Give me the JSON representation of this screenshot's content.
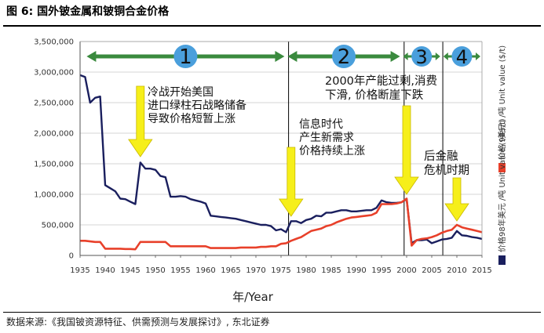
{
  "figure_title": "图 6:   国外铍金属和铍铜合金价格",
  "source_note": "数据来源:《我国铍资源特征、供需预测与发展探讨》, 东北证券",
  "chart_data": {
    "type": "line",
    "xlabel": "年/Year",
    "xlim": [
      1935,
      2015
    ],
    "ylim": [
      0,
      3500000
    ],
    "x_ticks": [
      "1935",
      "1940",
      "1945",
      "1950",
      "1955",
      "1960",
      "1965",
      "1970",
      "1975",
      "1980",
      "1985",
      "1990",
      "1995",
      "2000",
      "2005",
      "2010",
      "2015"
    ],
    "y_ticks": [
      "0",
      "500,000",
      "1,000,000",
      "1,500,000",
      "2,000,000",
      "2,500,000",
      "3,000,000",
      "3,500,000"
    ],
    "legend": [
      {
        "label": "价格 (美元) /吨   Unit value ($/t)",
        "color": "#e8402a"
      },
      {
        "label": "价格98年美元 /吨   Unit value (98$/t)",
        "color": "#1a1f5e"
      }
    ],
    "series": [
      {
        "name": "价格98年美元 /吨   Unit value (98$/t)",
        "color": "#1a1f5e",
        "points": [
          [
            1935,
            2950000
          ],
          [
            1936,
            2920000
          ],
          [
            1937,
            2500000
          ],
          [
            1938,
            2580000
          ],
          [
            1939,
            2600000
          ],
          [
            1940,
            1150000
          ],
          [
            1941,
            1100000
          ],
          [
            1942,
            1050000
          ],
          [
            1943,
            930000
          ],
          [
            1944,
            920000
          ],
          [
            1945,
            880000
          ],
          [
            1946,
            840000
          ],
          [
            1947,
            1520000
          ],
          [
            1948,
            1420000
          ],
          [
            1949,
            1420000
          ],
          [
            1950,
            1400000
          ],
          [
            1951,
            1300000
          ],
          [
            1952,
            1280000
          ],
          [
            1953,
            960000
          ],
          [
            1954,
            960000
          ],
          [
            1955,
            970000
          ],
          [
            1956,
            960000
          ],
          [
            1957,
            920000
          ],
          [
            1958,
            900000
          ],
          [
            1959,
            880000
          ],
          [
            1960,
            850000
          ],
          [
            1961,
            650000
          ],
          [
            1962,
            640000
          ],
          [
            1963,
            630000
          ],
          [
            1964,
            620000
          ],
          [
            1965,
            610000
          ],
          [
            1966,
            600000
          ],
          [
            1967,
            580000
          ],
          [
            1968,
            560000
          ],
          [
            1969,
            540000
          ],
          [
            1970,
            520000
          ],
          [
            1971,
            500000
          ],
          [
            1972,
            500000
          ],
          [
            1973,
            480000
          ],
          [
            1974,
            410000
          ],
          [
            1975,
            430000
          ],
          [
            1976,
            380000
          ],
          [
            1977,
            560000
          ],
          [
            1978,
            560000
          ],
          [
            1979,
            530000
          ],
          [
            1980,
            580000
          ],
          [
            1981,
            600000
          ],
          [
            1982,
            650000
          ],
          [
            1983,
            640000
          ],
          [
            1984,
            700000
          ],
          [
            1985,
            700000
          ],
          [
            1986,
            720000
          ],
          [
            1987,
            740000
          ],
          [
            1988,
            740000
          ],
          [
            1989,
            720000
          ],
          [
            1990,
            720000
          ],
          [
            1991,
            730000
          ],
          [
            1992,
            740000
          ],
          [
            1993,
            740000
          ],
          [
            1994,
            780000
          ],
          [
            1995,
            900000
          ],
          [
            1996,
            870000
          ],
          [
            1997,
            860000
          ],
          [
            1998,
            860000
          ],
          [
            1999,
            870000
          ],
          [
            2000,
            920000
          ],
          [
            2001,
            200000
          ],
          [
            2002,
            250000
          ],
          [
            2003,
            250000
          ],
          [
            2004,
            260000
          ],
          [
            2005,
            200000
          ],
          [
            2006,
            230000
          ],
          [
            2007,
            260000
          ],
          [
            2008,
            270000
          ],
          [
            2009,
            290000
          ],
          [
            2010,
            400000
          ],
          [
            2011,
            330000
          ],
          [
            2012,
            320000
          ],
          [
            2013,
            300000
          ],
          [
            2014,
            290000
          ],
          [
            2015,
            270000
          ]
        ]
      },
      {
        "name": "价格 (美元) /吨   Unit value ($/t)",
        "color": "#e8402a",
        "points": [
          [
            1935,
            240000
          ],
          [
            1936,
            240000
          ],
          [
            1937,
            230000
          ],
          [
            1938,
            220000
          ],
          [
            1939,
            220000
          ],
          [
            1940,
            110000
          ],
          [
            1941,
            110000
          ],
          [
            1942,
            110000
          ],
          [
            1943,
            110000
          ],
          [
            1944,
            105000
          ],
          [
            1945,
            105000
          ],
          [
            1946,
            100000
          ],
          [
            1947,
            220000
          ],
          [
            1948,
            220000
          ],
          [
            1949,
            220000
          ],
          [
            1950,
            220000
          ],
          [
            1951,
            220000
          ],
          [
            1952,
            220000
          ],
          [
            1953,
            150000
          ],
          [
            1954,
            150000
          ],
          [
            1955,
            150000
          ],
          [
            1956,
            150000
          ],
          [
            1957,
            150000
          ],
          [
            1958,
            150000
          ],
          [
            1959,
            150000
          ],
          [
            1960,
            150000
          ],
          [
            1961,
            120000
          ],
          [
            1962,
            120000
          ],
          [
            1963,
            120000
          ],
          [
            1964,
            120000
          ],
          [
            1965,
            120000
          ],
          [
            1966,
            120000
          ],
          [
            1967,
            130000
          ],
          [
            1968,
            130000
          ],
          [
            1969,
            130000
          ],
          [
            1970,
            130000
          ],
          [
            1971,
            140000
          ],
          [
            1972,
            140000
          ],
          [
            1973,
            150000
          ],
          [
            1974,
            150000
          ],
          [
            1975,
            190000
          ],
          [
            1976,
            200000
          ],
          [
            1977,
            240000
          ],
          [
            1978,
            270000
          ],
          [
            1979,
            300000
          ],
          [
            1980,
            350000
          ],
          [
            1981,
            400000
          ],
          [
            1982,
            420000
          ],
          [
            1983,
            440000
          ],
          [
            1984,
            480000
          ],
          [
            1985,
            500000
          ],
          [
            1986,
            540000
          ],
          [
            1987,
            570000
          ],
          [
            1988,
            600000
          ],
          [
            1989,
            620000
          ],
          [
            1990,
            630000
          ],
          [
            1991,
            640000
          ],
          [
            1992,
            650000
          ],
          [
            1993,
            660000
          ],
          [
            1994,
            700000
          ],
          [
            1995,
            840000
          ],
          [
            1996,
            840000
          ],
          [
            1997,
            840000
          ],
          [
            1998,
            850000
          ],
          [
            1999,
            870000
          ],
          [
            2000,
            930000
          ],
          [
            2001,
            160000
          ],
          [
            2002,
            250000
          ],
          [
            2003,
            270000
          ],
          [
            2004,
            280000
          ],
          [
            2005,
            300000
          ],
          [
            2006,
            330000
          ],
          [
            2007,
            370000
          ],
          [
            2008,
            400000
          ],
          [
            2009,
            420000
          ],
          [
            2010,
            500000
          ],
          [
            2011,
            460000
          ],
          [
            2012,
            440000
          ],
          [
            2013,
            420000
          ],
          [
            2014,
            400000
          ],
          [
            2015,
            380000
          ]
        ]
      }
    ],
    "phases": [
      {
        "label": "1",
        "from": 1936,
        "to": 1976
      },
      {
        "label": "2",
        "from": 1976,
        "to": 1999
      },
      {
        "label": "3",
        "from": 1999,
        "to": 2007
      },
      {
        "label": "4",
        "from": 2007,
        "to": 2015
      }
    ],
    "annotations": [
      {
        "lines": [
          "冷战开始美国",
          "进口绿柱石战略储备",
          "导致价格短暂上涨"
        ],
        "arrow_x": 1947
      },
      {
        "lines": [
          "信息时代",
          "产生新需求",
          "价格持续上涨"
        ],
        "arrow_x": 1977
      },
      {
        "lines": [
          "2000年产能过剩,消费",
          "下滑, 价格断崖下跌"
        ],
        "arrow_x": 2000
      },
      {
        "lines": [
          "后金融",
          "危机时期"
        ],
        "arrow_x": 2010
      }
    ]
  }
}
